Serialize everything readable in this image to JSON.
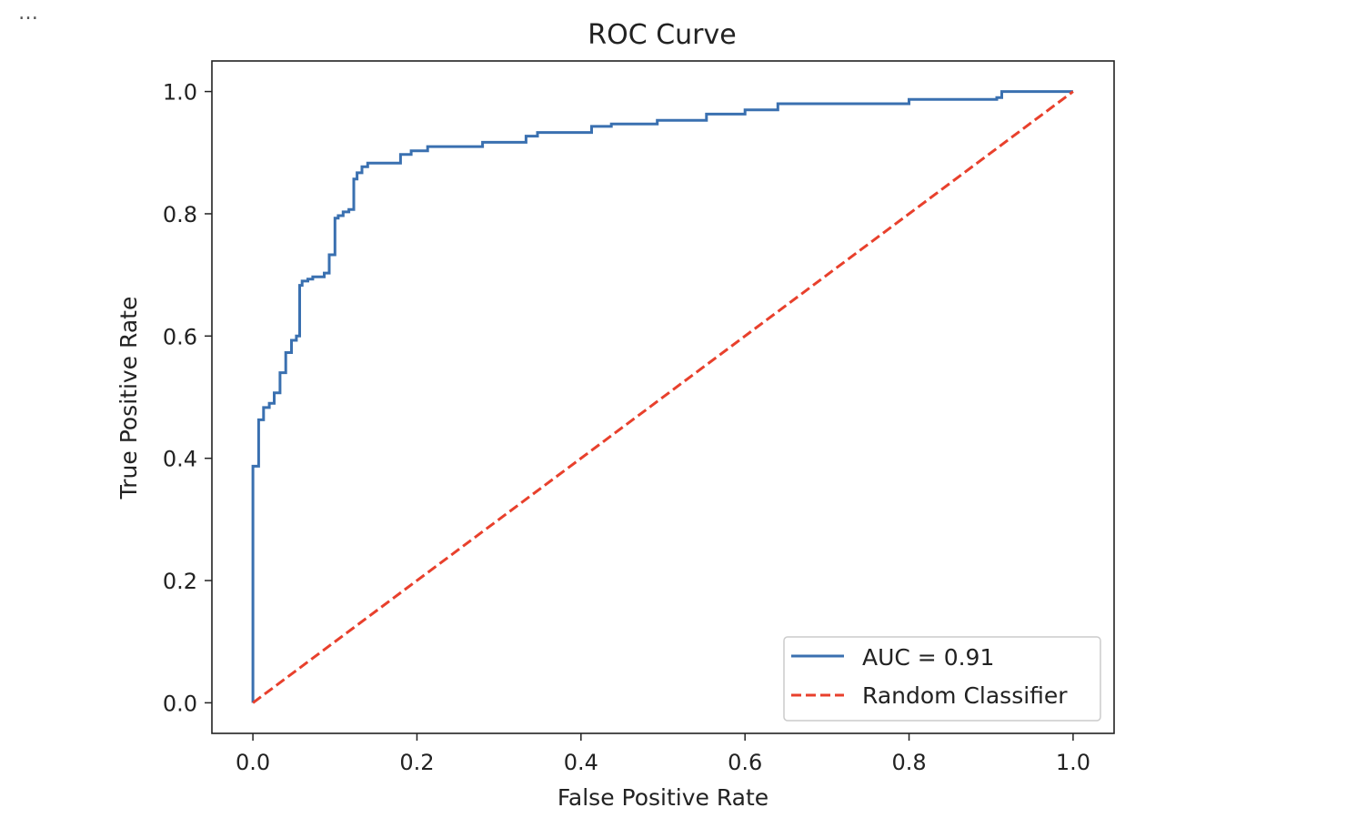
{
  "cell_toolbar": {
    "more_label": "…"
  },
  "chart_data": {
    "type": "line",
    "title": "ROC Curve",
    "xlabel": "False Positive Rate",
    "ylabel": "True Positive Rate",
    "xlim": [
      -0.05,
      1.05
    ],
    "ylim": [
      -0.05,
      1.05
    ],
    "xticks": [
      0.0,
      0.2,
      0.4,
      0.6,
      0.8,
      1.0
    ],
    "yticks": [
      0.0,
      0.2,
      0.4,
      0.6,
      0.8,
      1.0
    ],
    "xtick_labels": [
      "0.0",
      "0.2",
      "0.4",
      "0.6",
      "0.8",
      "1.0"
    ],
    "ytick_labels": [
      "0.0",
      "0.2",
      "0.4",
      "0.6",
      "0.8",
      "1.0"
    ],
    "grid": false,
    "legend_position": "lower right",
    "series": [
      {
        "name": "AUC = 0.91",
        "color": "#3a70b0",
        "style": "solid",
        "x": [
          0.0,
          0.0,
          0.0,
          0.007,
          0.007,
          0.013,
          0.013,
          0.02,
          0.02,
          0.026,
          0.026,
          0.033,
          0.033,
          0.04,
          0.04,
          0.047,
          0.047,
          0.053,
          0.053,
          0.057,
          0.057,
          0.06,
          0.06,
          0.067,
          0.067,
          0.073,
          0.073,
          0.087,
          0.087,
          0.093,
          0.093,
          0.1,
          0.1,
          0.104,
          0.104,
          0.11,
          0.11,
          0.117,
          0.117,
          0.123,
          0.123,
          0.127,
          0.127,
          0.133,
          0.133,
          0.14,
          0.14,
          0.18,
          0.18,
          0.193,
          0.193,
          0.213,
          0.213,
          0.28,
          0.28,
          0.333,
          0.333,
          0.347,
          0.347,
          0.413,
          0.413,
          0.437,
          0.437,
          0.493,
          0.493,
          0.553,
          0.553,
          0.6,
          0.6,
          0.64,
          0.64,
          0.8,
          0.8,
          0.907,
          0.907,
          0.913,
          0.913,
          1.0
        ],
        "y": [
          0.0,
          0.0,
          0.387,
          0.387,
          0.463,
          0.463,
          0.483,
          0.483,
          0.49,
          0.49,
          0.507,
          0.507,
          0.54,
          0.54,
          0.573,
          0.573,
          0.593,
          0.593,
          0.6,
          0.6,
          0.683,
          0.683,
          0.69,
          0.69,
          0.693,
          0.693,
          0.697,
          0.697,
          0.703,
          0.703,
          0.733,
          0.733,
          0.793,
          0.793,
          0.797,
          0.797,
          0.803,
          0.803,
          0.807,
          0.807,
          0.857,
          0.857,
          0.867,
          0.867,
          0.877,
          0.877,
          0.883,
          0.883,
          0.897,
          0.897,
          0.903,
          0.903,
          0.91,
          0.91,
          0.917,
          0.917,
          0.927,
          0.927,
          0.933,
          0.933,
          0.943,
          0.943,
          0.947,
          0.947,
          0.953,
          0.953,
          0.963,
          0.963,
          0.97,
          0.97,
          0.98,
          0.98,
          0.987,
          0.987,
          0.99,
          0.99,
          1.0,
          1.0
        ]
      },
      {
        "name": "Random Classifier",
        "color": "#e8402c",
        "style": "dashed",
        "x": [
          0.0,
          1.0
        ],
        "y": [
          0.0,
          1.0
        ]
      }
    ]
  }
}
